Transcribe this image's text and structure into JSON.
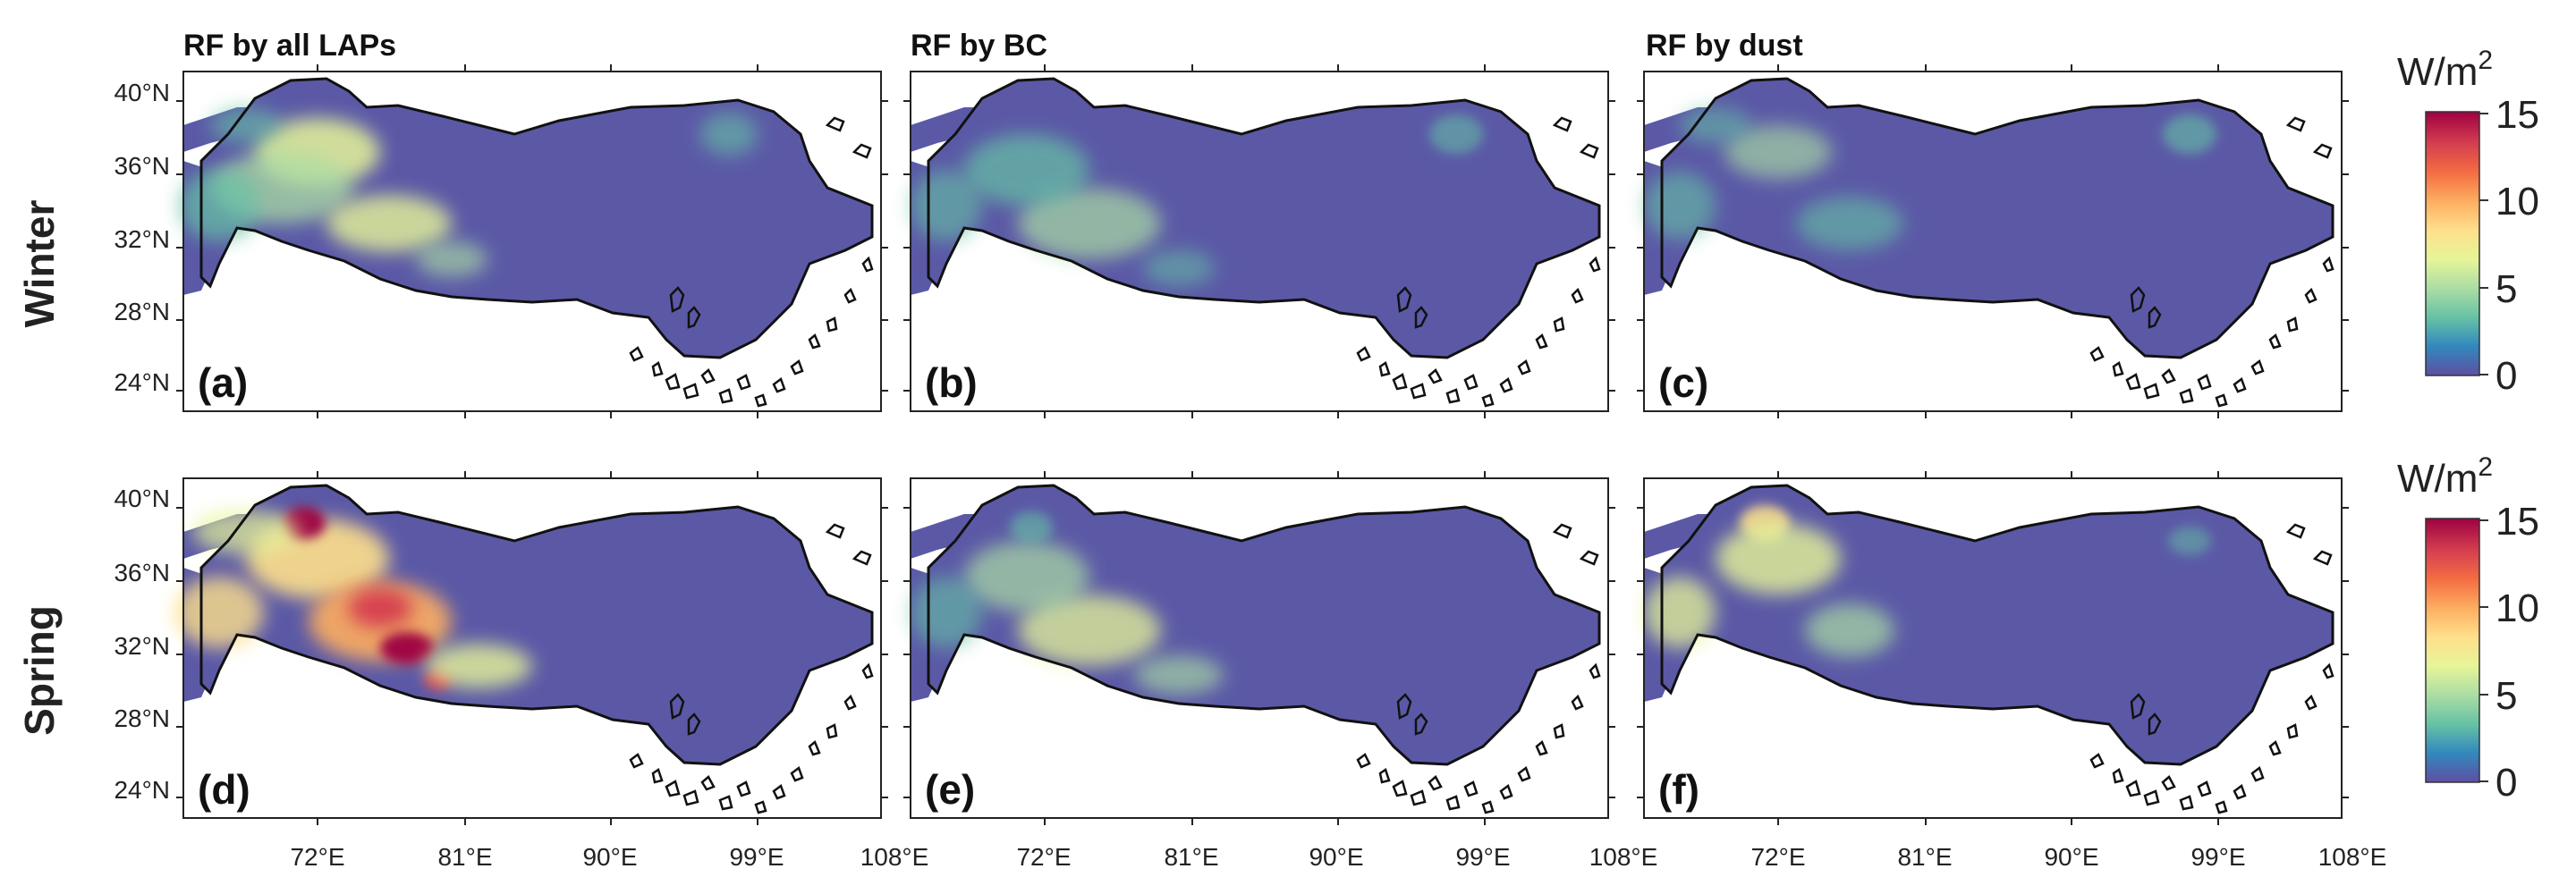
{
  "figure": {
    "rows": [
      {
        "id": "winter",
        "label": "Winter"
      },
      {
        "id": "spring",
        "label": "Spring"
      }
    ],
    "columns": [
      {
        "id": "all",
        "title": "RF by all LAPs"
      },
      {
        "id": "bc",
        "title": "RF by BC"
      },
      {
        "id": "dust",
        "title": "RF by dust"
      }
    ],
    "panels": [
      {
        "id": "a",
        "letter": "(a)",
        "row": "winter",
        "column": "all"
      },
      {
        "id": "b",
        "letter": "(b)",
        "row": "winter",
        "column": "bc"
      },
      {
        "id": "c",
        "letter": "(c)",
        "row": "winter",
        "column": "dust"
      },
      {
        "id": "d",
        "letter": "(d)",
        "row": "spring",
        "column": "all"
      },
      {
        "id": "e",
        "letter": "(e)",
        "row": "spring",
        "column": "bc"
      },
      {
        "id": "f",
        "letter": "(f)",
        "row": "spring",
        "column": "dust"
      }
    ],
    "lat_ticks": [
      "40°N",
      "36°N",
      "32°N",
      "28°N",
      "24°N"
    ],
    "lon_ticks": [
      "72°E",
      "81°E",
      "90°E",
      "99°E",
      "108°E"
    ],
    "colorbar": {
      "unit": "W/m",
      "unit_superscript": "2",
      "ticks": [
        "15",
        "10",
        "5",
        "0"
      ],
      "range": [
        0,
        15
      ],
      "colormap": [
        "#5e4fa2",
        "#3288bd",
        "#66c2a5",
        "#abdda4",
        "#e6f598",
        "#fee08b",
        "#fdae61",
        "#f46d43",
        "#d53e4f",
        "#9e0142"
      ]
    },
    "colors": {
      "plateau_background": "#5b59a6",
      "low_rf": "#5b59a6",
      "high_rf": "#9e0142"
    }
  }
}
